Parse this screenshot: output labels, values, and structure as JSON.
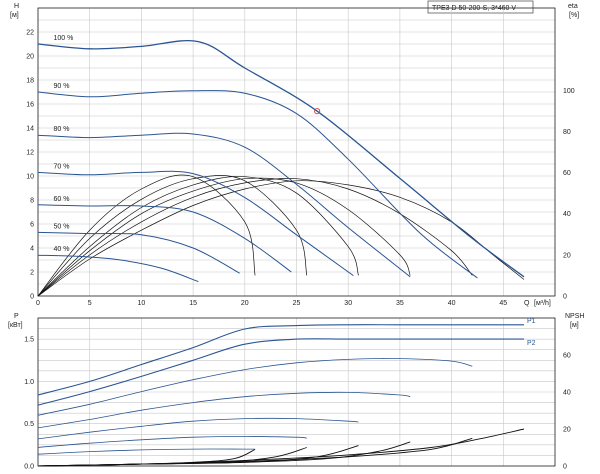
{
  "chart_data": [
    {
      "type": "line",
      "title": "TPE3 D 50-200-S, 3*460 V",
      "ylabel": "H",
      "yunit": "[м]",
      "xlabel": "Q",
      "xunit": "[м³/h]",
      "y2label": "eta",
      "y2unit": "[%]",
      "xlim": [
        0,
        50
      ],
      "ylim": [
        0,
        24
      ],
      "y2lim": [
        0,
        140
      ],
      "x_ticks": [
        "0",
        "5",
        "10",
        "15",
        "20",
        "25",
        "30",
        "35",
        "40",
        "45"
      ],
      "y_ticks": [
        "0",
        "2",
        "4",
        "6",
        "8",
        "10",
        "12",
        "14",
        "16",
        "18",
        "20",
        "22"
      ],
      "y2_ticks": [
        "0",
        "20",
        "40",
        "60",
        "80",
        "100"
      ],
      "grid": true,
      "operating_point": {
        "x": 27,
        "y": 15.4
      },
      "series": [
        {
          "name": "100 %",
          "x": [
            0,
            5,
            10,
            15.5,
            20,
            27,
            35,
            42,
            47
          ],
          "y": [
            21,
            20.6,
            20.8,
            21.2,
            19.0,
            15.4,
            9.8,
            4.8,
            1.6
          ]
        },
        {
          "name": "90 %",
          "x": [
            0,
            5,
            10,
            15,
            20,
            25,
            30,
            37,
            42.5
          ],
          "y": [
            17.0,
            16.6,
            16.9,
            17.1,
            16.9,
            15.2,
            11.4,
            5.2,
            1.5
          ]
        },
        {
          "name": "80 %",
          "x": [
            0,
            5,
            10,
            15,
            20,
            25,
            30,
            36
          ],
          "y": [
            13.4,
            13.2,
            13.4,
            13.5,
            12.4,
            9.3,
            5.7,
            1.6
          ]
        },
        {
          "name": "70 %",
          "x": [
            0,
            5,
            10,
            15,
            20,
            25,
            30.5
          ],
          "y": [
            10.3,
            10.1,
            10.3,
            10.2,
            8.2,
            5.1,
            1.7
          ]
        },
        {
          "name": "60 %",
          "x": [
            0,
            5,
            10,
            15,
            20,
            24.5
          ],
          "y": [
            7.6,
            7.5,
            7.5,
            7.0,
            4.8,
            2.0
          ]
        },
        {
          "name": "50 %",
          "x": [
            0,
            5,
            10,
            15,
            19.5
          ],
          "y": [
            5.3,
            5.2,
            5.1,
            4.0,
            1.9
          ]
        },
        {
          "name": "40 %",
          "x": [
            0,
            4,
            8,
            12,
            15.5
          ],
          "y": [
            3.4,
            3.3,
            3.0,
            2.3,
            1.2
          ]
        }
      ],
      "eta_series": [
        {
          "x": [
            0,
            5,
            10,
            15,
            20,
            25,
            30,
            35,
            40,
            44,
            47
          ],
          "y": [
            0,
            18,
            32,
            44,
            52,
            56,
            54,
            48,
            36,
            20,
            8
          ]
        },
        {
          "x": [
            0,
            5,
            10,
            15,
            20,
            25,
            30,
            35,
            40,
            42
          ],
          "y": [
            0,
            20,
            36,
            48,
            55,
            57,
            52,
            40,
            22,
            10
          ]
        },
        {
          "x": [
            0,
            5,
            10,
            15,
            20,
            25,
            30,
            35,
            36
          ],
          "y": [
            0,
            22,
            40,
            51,
            57,
            55,
            42,
            20,
            10
          ]
        },
        {
          "x": [
            0,
            5,
            10,
            15,
            20,
            25,
            30,
            31
          ],
          "y": [
            0,
            24,
            43,
            54,
            58,
            50,
            24,
            10
          ]
        },
        {
          "x": [
            0,
            5,
            10,
            15,
            20,
            25,
            26
          ],
          "y": [
            0,
            28,
            47,
            57,
            56,
            32,
            10
          ]
        },
        {
          "x": [
            0,
            5,
            10,
            15,
            20,
            21
          ],
          "y": [
            0,
            32,
            52,
            58,
            36,
            10
          ]
        }
      ]
    },
    {
      "type": "line",
      "ylabel": "P",
      "yunit": "[кВт]",
      "y2label": "NPSH",
      "y2unit": "[м]",
      "xlim": [
        0,
        50
      ],
      "ylim": [
        0,
        1.75
      ],
      "y2lim": [
        0,
        80
      ],
      "y_ticks": [
        "0.0",
        "0.5",
        "1.0",
        "1.5"
      ],
      "y2_ticks": [
        "0",
        "20",
        "40",
        "60"
      ],
      "grid": true,
      "series": [
        {
          "name": "P1",
          "x": [
            0,
            5,
            10,
            15,
            20,
            25,
            30,
            35,
            40,
            45,
            47
          ],
          "y": [
            0.84,
            1.0,
            1.2,
            1.4,
            1.62,
            1.66,
            1.67,
            1.67,
            1.67,
            1.67,
            1.67
          ]
        },
        {
          "name": "P2",
          "x": [
            0,
            5,
            10,
            15,
            20,
            25,
            30,
            35,
            40,
            45,
            47
          ],
          "y": [
            0.72,
            0.88,
            1.06,
            1.25,
            1.44,
            1.5,
            1.5,
            1.5,
            1.5,
            1.5,
            1.5
          ]
        },
        {
          "x": [
            0,
            5,
            10,
            15,
            20,
            25,
            30,
            35,
            40,
            42
          ],
          "y": [
            0.6,
            0.73,
            0.88,
            1.02,
            1.14,
            1.22,
            1.26,
            1.27,
            1.24,
            1.18
          ]
        },
        {
          "x": [
            0,
            5,
            10,
            15,
            20,
            25,
            30,
            35,
            36
          ],
          "y": [
            0.45,
            0.55,
            0.66,
            0.75,
            0.82,
            0.86,
            0.87,
            0.84,
            0.82
          ]
        },
        {
          "x": [
            0,
            5,
            10,
            15,
            20,
            25,
            30,
            31
          ],
          "y": [
            0.32,
            0.4,
            0.47,
            0.53,
            0.56,
            0.56,
            0.53,
            0.52
          ]
        },
        {
          "x": [
            0,
            5,
            10,
            15,
            20,
            25,
            26
          ],
          "y": [
            0.22,
            0.27,
            0.31,
            0.34,
            0.35,
            0.34,
            0.33
          ]
        },
        {
          "x": [
            0,
            5,
            10,
            15,
            20,
            21
          ],
          "y": [
            0.14,
            0.17,
            0.19,
            0.2,
            0.2,
            0.2
          ]
        }
      ],
      "npsh_series": [
        {
          "x": [
            0,
            10,
            20,
            30,
            38,
            43,
            47
          ],
          "y": [
            0,
            1,
            3,
            6,
            10,
            15,
            20
          ]
        },
        {
          "x": [
            0,
            10,
            20,
            30,
            38,
            42
          ],
          "y": [
            0,
            1,
            2.5,
            5,
            9,
            15
          ]
        },
        {
          "x": [
            0,
            10,
            20,
            28,
            33,
            36
          ],
          "y": [
            0,
            1,
            2,
            4,
            8,
            13
          ]
        },
        {
          "x": [
            0,
            10,
            20,
            27,
            31
          ],
          "y": [
            0,
            1,
            2,
            5,
            11
          ]
        },
        {
          "x": [
            0,
            10,
            18,
            23,
            26
          ],
          "y": [
            0,
            1,
            2,
            5,
            10
          ]
        },
        {
          "x": [
            0,
            8,
            15,
            19,
            21
          ],
          "y": [
            0,
            0.8,
            2,
            4,
            9
          ]
        }
      ]
    }
  ]
}
